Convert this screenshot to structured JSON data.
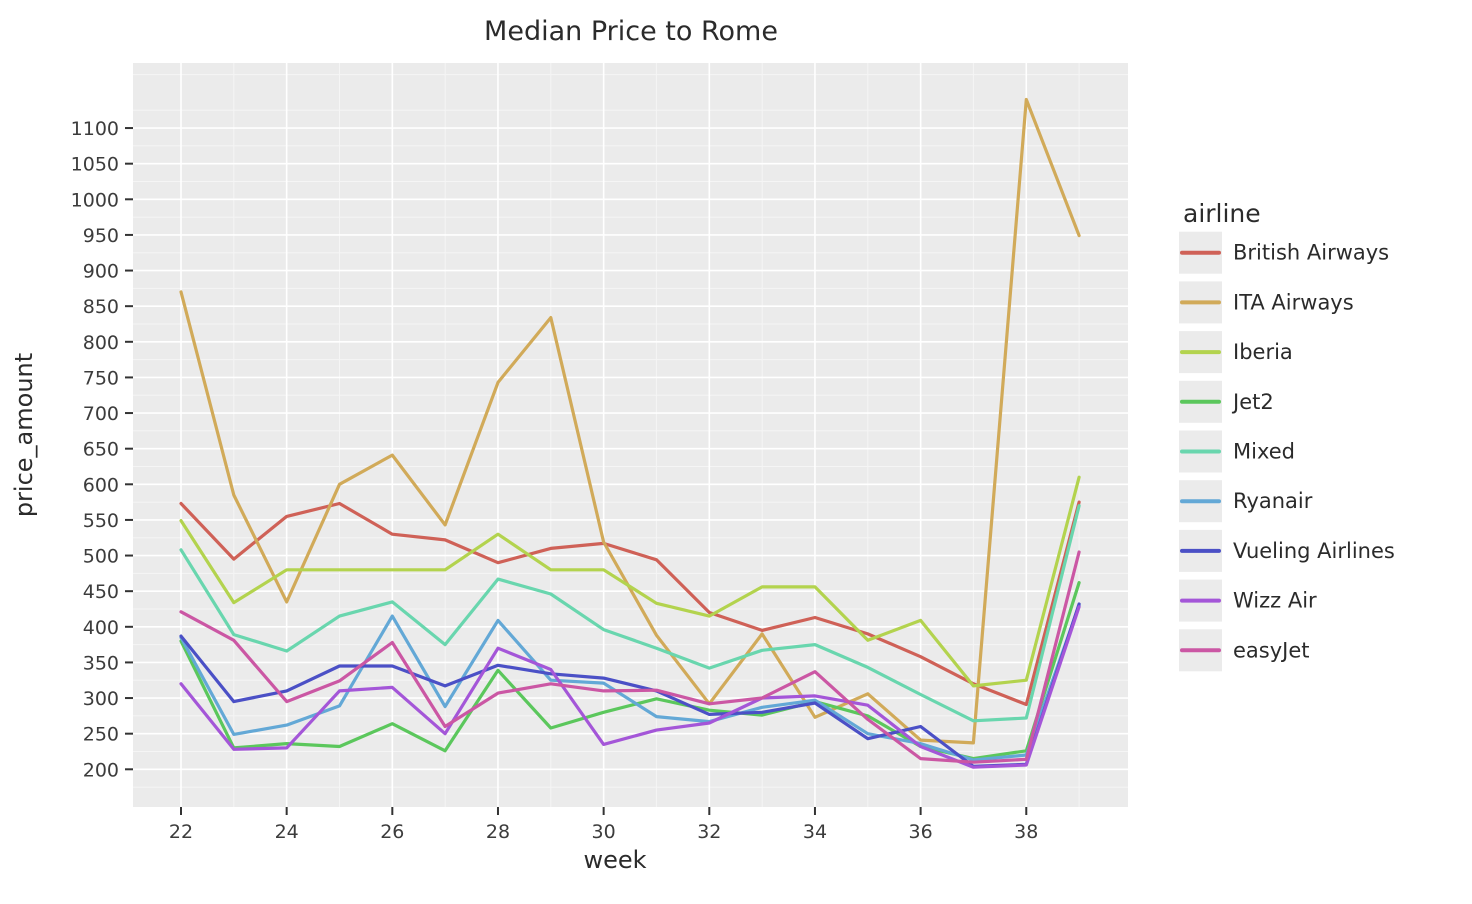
{
  "title": "Median Price to Rome",
  "axes": {
    "x": {
      "label": "week",
      "major_ticks": [
        22,
        24,
        26,
        28,
        30,
        32,
        34,
        36,
        38
      ],
      "minor_ticks": [
        23,
        25,
        27,
        29,
        31,
        33,
        35,
        37,
        39
      ]
    },
    "y": {
      "label": "price_amount",
      "major_ticks": [
        200,
        250,
        300,
        350,
        400,
        450,
        500,
        550,
        600,
        650,
        700,
        750,
        800,
        850,
        900,
        950,
        1000,
        1050,
        1100
      ]
    }
  },
  "legend": {
    "title": "airline",
    "entries": [
      {
        "label": "British Airways",
        "color": "#cf6157"
      },
      {
        "label": "ITA Airways",
        "color": "#d1aa59"
      },
      {
        "label": "Iberia",
        "color": "#b3d34e"
      },
      {
        "label": "Jet2",
        "color": "#5bc75c"
      },
      {
        "label": "Mixed",
        "color": "#69d6ae"
      },
      {
        "label": "Ryanair",
        "color": "#63a8d6"
      },
      {
        "label": "Vueling Airlines",
        "color": "#4b50c6"
      },
      {
        "label": "Wizz Air",
        "color": "#a456d8"
      },
      {
        "label": "easyJet",
        "color": "#cb57a4"
      }
    ]
  },
  "style": {
    "panel_bg": "#ebebeb",
    "major_grid": "#ffffff",
    "minor_grid": "#f5f5f5",
    "tick_mark": "#333333",
    "line_width": 3.2
  },
  "chart_data": {
    "type": "line",
    "title": "Median Price to Rome",
    "xlabel": "week",
    "ylabel": "price_amount",
    "x": [
      22,
      23,
      24,
      25,
      26,
      27,
      28,
      29,
      30,
      31,
      32,
      33,
      34,
      35,
      36,
      37,
      38,
      39
    ],
    "xlim": [
      21.1,
      39.93
    ],
    "ylim": [
      147,
      1191
    ],
    "grid": "white major and minor gridlines on gray panel",
    "legend_position": "right",
    "series": [
      {
        "name": "British Airways",
        "color": "#cf6157",
        "values": [
          573,
          495,
          555,
          573,
          530,
          522,
          490,
          510,
          517,
          494,
          420,
          395,
          413,
          390,
          358,
          320,
          291,
          575
        ]
      },
      {
        "name": "ITA Airways",
        "color": "#d1aa59",
        "values": [
          870,
          585,
          435,
          600,
          641,
          543,
          743,
          834,
          519,
          388,
          292,
          390,
          273,
          306,
          241,
          237,
          1140,
          949
        ]
      },
      {
        "name": "Iberia",
        "color": "#b3d34e",
        "values": [
          549,
          434,
          480,
          480,
          480,
          480,
          530,
          480,
          480,
          433,
          415,
          456,
          456,
          381,
          409,
          317,
          325,
          610
        ]
      },
      {
        "name": "Jet2",
        "color": "#5bc75c",
        "values": [
          380,
          230,
          236,
          232,
          264,
          226,
          339,
          258,
          280,
          299,
          283,
          276,
          295,
          275,
          232,
          215,
          226,
          462
        ]
      },
      {
        "name": "Mixed",
        "color": "#69d6ae",
        "values": [
          508,
          389,
          366,
          415,
          435,
          375,
          467,
          446,
          396,
          370,
          342,
          367,
          375,
          343,
          305,
          268,
          272,
          570
        ]
      },
      {
        "name": "Ryanair",
        "color": "#63a8d6",
        "values": [
          385,
          249,
          262,
          289,
          415,
          288,
          409,
          325,
          321,
          274,
          267,
          287,
          297,
          250,
          236,
          213,
          220,
          430
        ]
      },
      {
        "name": "Vueling Airlines",
        "color": "#4b50c6",
        "values": [
          387,
          295,
          310,
          345,
          345,
          317,
          346,
          334,
          328,
          310,
          277,
          280,
          293,
          243,
          260,
          204,
          207,
          432
        ]
      },
      {
        "name": "Wizz Air",
        "color": "#a456d8",
        "values": [
          320,
          228,
          230,
          310,
          315,
          250,
          370,
          340,
          235,
          255,
          265,
          300,
          303,
          290,
          232,
          203,
          206,
          428
        ]
      },
      {
        "name": "easyJet",
        "color": "#cb57a4",
        "values": [
          421,
          381,
          295,
          324,
          378,
          260,
          307,
          320,
          310,
          311,
          292,
          300,
          337,
          270,
          215,
          210,
          214,
          505
        ]
      }
    ]
  }
}
